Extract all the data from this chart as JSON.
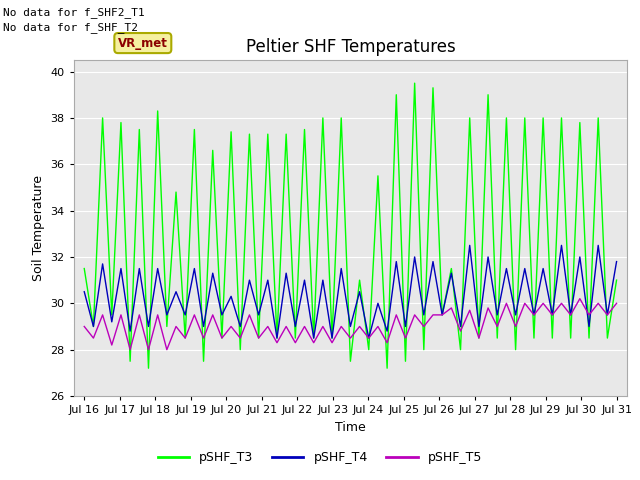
{
  "title": "Peltier SHF Temperatures",
  "xlabel": "Time",
  "ylabel": "Soil Temperature",
  "ylim": [
    26,
    40.5
  ],
  "yticks": [
    26,
    28,
    30,
    32,
    34,
    36,
    38,
    40
  ],
  "x_labels": [
    "Jul 16",
    "Jul 17",
    "Jul 18",
    "Jul 19",
    "Jul 20",
    "Jul 21",
    "Jul 22",
    "Jul 23",
    "Jul 24",
    "Jul 25",
    "Jul 26",
    "Jul 27",
    "Jul 28",
    "Jul 29",
    "Jul 30",
    "Jul 31"
  ],
  "annotations_top_left": [
    "No data for f_SHF2_T1",
    "No data for f_SHF_T2"
  ],
  "vr_met_label": "VR_met",
  "legend_entries": [
    "pSHF_T3",
    "pSHF_T4",
    "pSHF_T5"
  ],
  "legend_colors": [
    "#00ff00",
    "#0000bb",
    "#bb00bb"
  ],
  "line_colors": [
    "#00ff00",
    "#0000bb",
    "#bb00bb"
  ],
  "background_color": "#ffffff",
  "plot_bg_color": "#e8e8e8",
  "grid_color": "#ffffff",
  "title_fontsize": 12,
  "axis_label_fontsize": 9,
  "tick_fontsize": 8,
  "annotation_fontsize": 8,
  "pSHF_T3": [
    31.5,
    29.0,
    38.0,
    29.5,
    37.8,
    27.5,
    37.5,
    27.2,
    38.3,
    29.0,
    34.8,
    28.5,
    37.5,
    27.5,
    36.6,
    28.5,
    37.4,
    28.0,
    37.3,
    28.5,
    37.3,
    28.5,
    37.3,
    28.5,
    37.5,
    28.5,
    38.0,
    28.5,
    38.0,
    27.5,
    31.0,
    28.0,
    35.5,
    27.2,
    39.0,
    27.5,
    39.5,
    28.0,
    39.3,
    29.5,
    31.5,
    28.0,
    38.0,
    28.5,
    39.0,
    28.5,
    38.0,
    28.0,
    38.0,
    28.5,
    38.0,
    28.5,
    38.0,
    28.5,
    37.8,
    28.5,
    38.0,
    28.5,
    31.0
  ],
  "pSHF_T4": [
    30.5,
    29.0,
    31.7,
    29.2,
    31.5,
    28.8,
    31.5,
    29.0,
    31.5,
    29.5,
    30.5,
    29.5,
    31.5,
    29.0,
    31.3,
    29.5,
    30.3,
    29.0,
    31.0,
    29.5,
    31.0,
    28.5,
    31.3,
    29.0,
    31.0,
    28.5,
    31.0,
    28.5,
    31.5,
    29.0,
    30.5,
    28.5,
    30.0,
    28.8,
    31.8,
    29.0,
    32.0,
    29.5,
    31.8,
    29.5,
    31.3,
    29.0,
    32.5,
    29.0,
    32.0,
    29.5,
    31.5,
    29.5,
    31.5,
    29.5,
    31.5,
    29.5,
    32.5,
    29.5,
    32.0,
    29.0,
    32.5,
    29.5,
    31.8
  ],
  "pSHF_T5": [
    29.0,
    28.5,
    29.5,
    28.2,
    29.5,
    28.0,
    29.5,
    28.0,
    29.5,
    28.0,
    29.0,
    28.5,
    29.5,
    28.5,
    29.5,
    28.5,
    29.0,
    28.5,
    29.5,
    28.5,
    29.0,
    28.3,
    29.0,
    28.3,
    29.0,
    28.3,
    29.0,
    28.3,
    29.0,
    28.5,
    29.0,
    28.5,
    29.0,
    28.3,
    29.5,
    28.5,
    29.5,
    29.0,
    29.5,
    29.5,
    29.8,
    28.8,
    29.7,
    28.5,
    29.8,
    29.0,
    30.0,
    29.0,
    30.0,
    29.5,
    30.0,
    29.5,
    30.0,
    29.5,
    30.2,
    29.5,
    30.0,
    29.5,
    30.0
  ]
}
